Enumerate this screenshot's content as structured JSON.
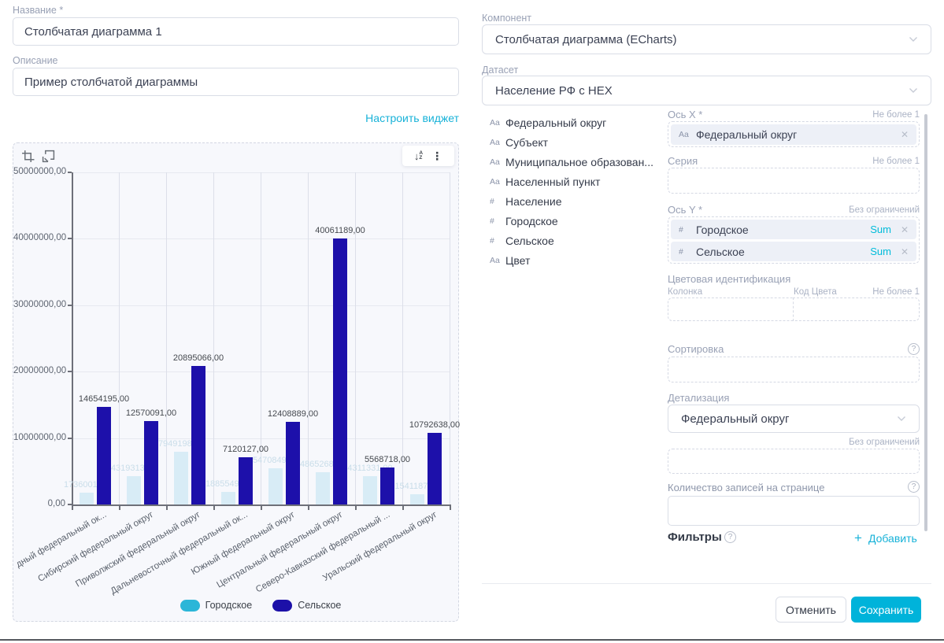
{
  "left_panel": {
    "name_label": "Название *",
    "name_value": "Столбчатая диаграмма 1",
    "description_label": "Описание",
    "description_value": "Пример столбчатой диаграммы",
    "configure_widget_link": "Настроить виджет"
  },
  "chart_data": {
    "type": "bar",
    "title": "",
    "categories": [
      "дный федеральный ок...",
      "Сибирский федеральный округ",
      "Приволжский федеральный округ",
      "Дальневосточный федеральный ок...",
      "Южный федеральный округ",
      "Центральный федеральный округ",
      "Северо-Кавказский федеральный ...",
      "Уральский федеральный округ"
    ],
    "series": [
      {
        "name": "Городское",
        "values": [
          1736001,
          4319313,
          7949198,
          1885549,
          5470849,
          4865268,
          4311331,
          1541187
        ],
        "labels": [
          "1736001,00",
          "4319313,00",
          "7949198,00",
          "1885549,00",
          "5470849,00",
          "4865268,00",
          "4311331,00",
          "1541187,00"
        ],
        "bar_color": "#d8ecf6",
        "legend_color": "#2bb6d8",
        "label_color": "#c9dde9"
      },
      {
        "name": "Сельское",
        "values": [
          14654195,
          12570091,
          20895066,
          7120127,
          12408889,
          40061189,
          5568718,
          10792638
        ],
        "labels": [
          "14654195,00",
          "12570091,00",
          "20895066,00",
          "7120127,00",
          "12408889,00",
          "40061189,00",
          "5568718,00",
          "10792638,00"
        ],
        "bar_color": "#1d10aa",
        "legend_color": "#1c10a8",
        "label_color": "#45494f"
      }
    ],
    "ylim": [
      0,
      50000000
    ],
    "y_tick_labels": [
      "50000000,00",
      "40000000,00",
      "30000000,00",
      "20000000,00",
      "10000000,00",
      "0,00"
    ],
    "legend": [
      "Городское",
      "Сельское"
    ],
    "legend_position": "bottom",
    "grid": true
  },
  "right_panel": {
    "component_label": "Компонент",
    "component_value": "Столбчатая диаграмма (ECharts)",
    "dataset_label": "Датасет",
    "dataset_value": "Население РФ с HEX",
    "fields": [
      {
        "type": "Aa",
        "name": "Федеральный округ"
      },
      {
        "type": "Aa",
        "name": "Субъект"
      },
      {
        "type": "Aa",
        "name": "Муниципальное образован..."
      },
      {
        "type": "Aa",
        "name": "Населенный пункт"
      },
      {
        "type": "#",
        "name": "Население"
      },
      {
        "type": "#",
        "name": "Городское"
      },
      {
        "type": "#",
        "name": "Сельское"
      },
      {
        "type": "Aa",
        "name": "Цвет"
      }
    ],
    "x_axis": {
      "label": "Ось X *",
      "hint": "Не более 1",
      "chip": {
        "type": "Aa",
        "name": "Федеральный округ"
      }
    },
    "series_zone": {
      "label": "Серия",
      "hint": "Не более 1"
    },
    "y_axis": {
      "label": "Ось Y *",
      "hint": "Без ограничений",
      "chips": [
        {
          "type": "#",
          "name": "Городское",
          "agg": "Sum"
        },
        {
          "type": "#",
          "name": "Сельское",
          "agg": "Sum"
        }
      ]
    },
    "color_ident": {
      "label": "Цветовая идентификация",
      "column_label": "Колонка",
      "code_label": "Код Цвета",
      "hint": "Не более 1"
    },
    "sorting": {
      "label": "Сортировка"
    },
    "detail": {
      "label": "Детализация",
      "value": "Федеральный округ"
    },
    "records_zone_hint": "Без ограничений",
    "page_size_label": "Количество записей на странице",
    "filters": {
      "label": "Фильтры",
      "add_label": "Добавить"
    }
  },
  "footer": {
    "cancel_label": "Отменить",
    "save_label": "Сохранить"
  },
  "colors": {
    "accent": "#17b2d8",
    "save_button": "#00b3da",
    "bar_dark": "#1d10aa",
    "bar_light": "#d8ecf6",
    "legend_light": "#2bb6d8",
    "sum_badge": "#00bcda"
  }
}
